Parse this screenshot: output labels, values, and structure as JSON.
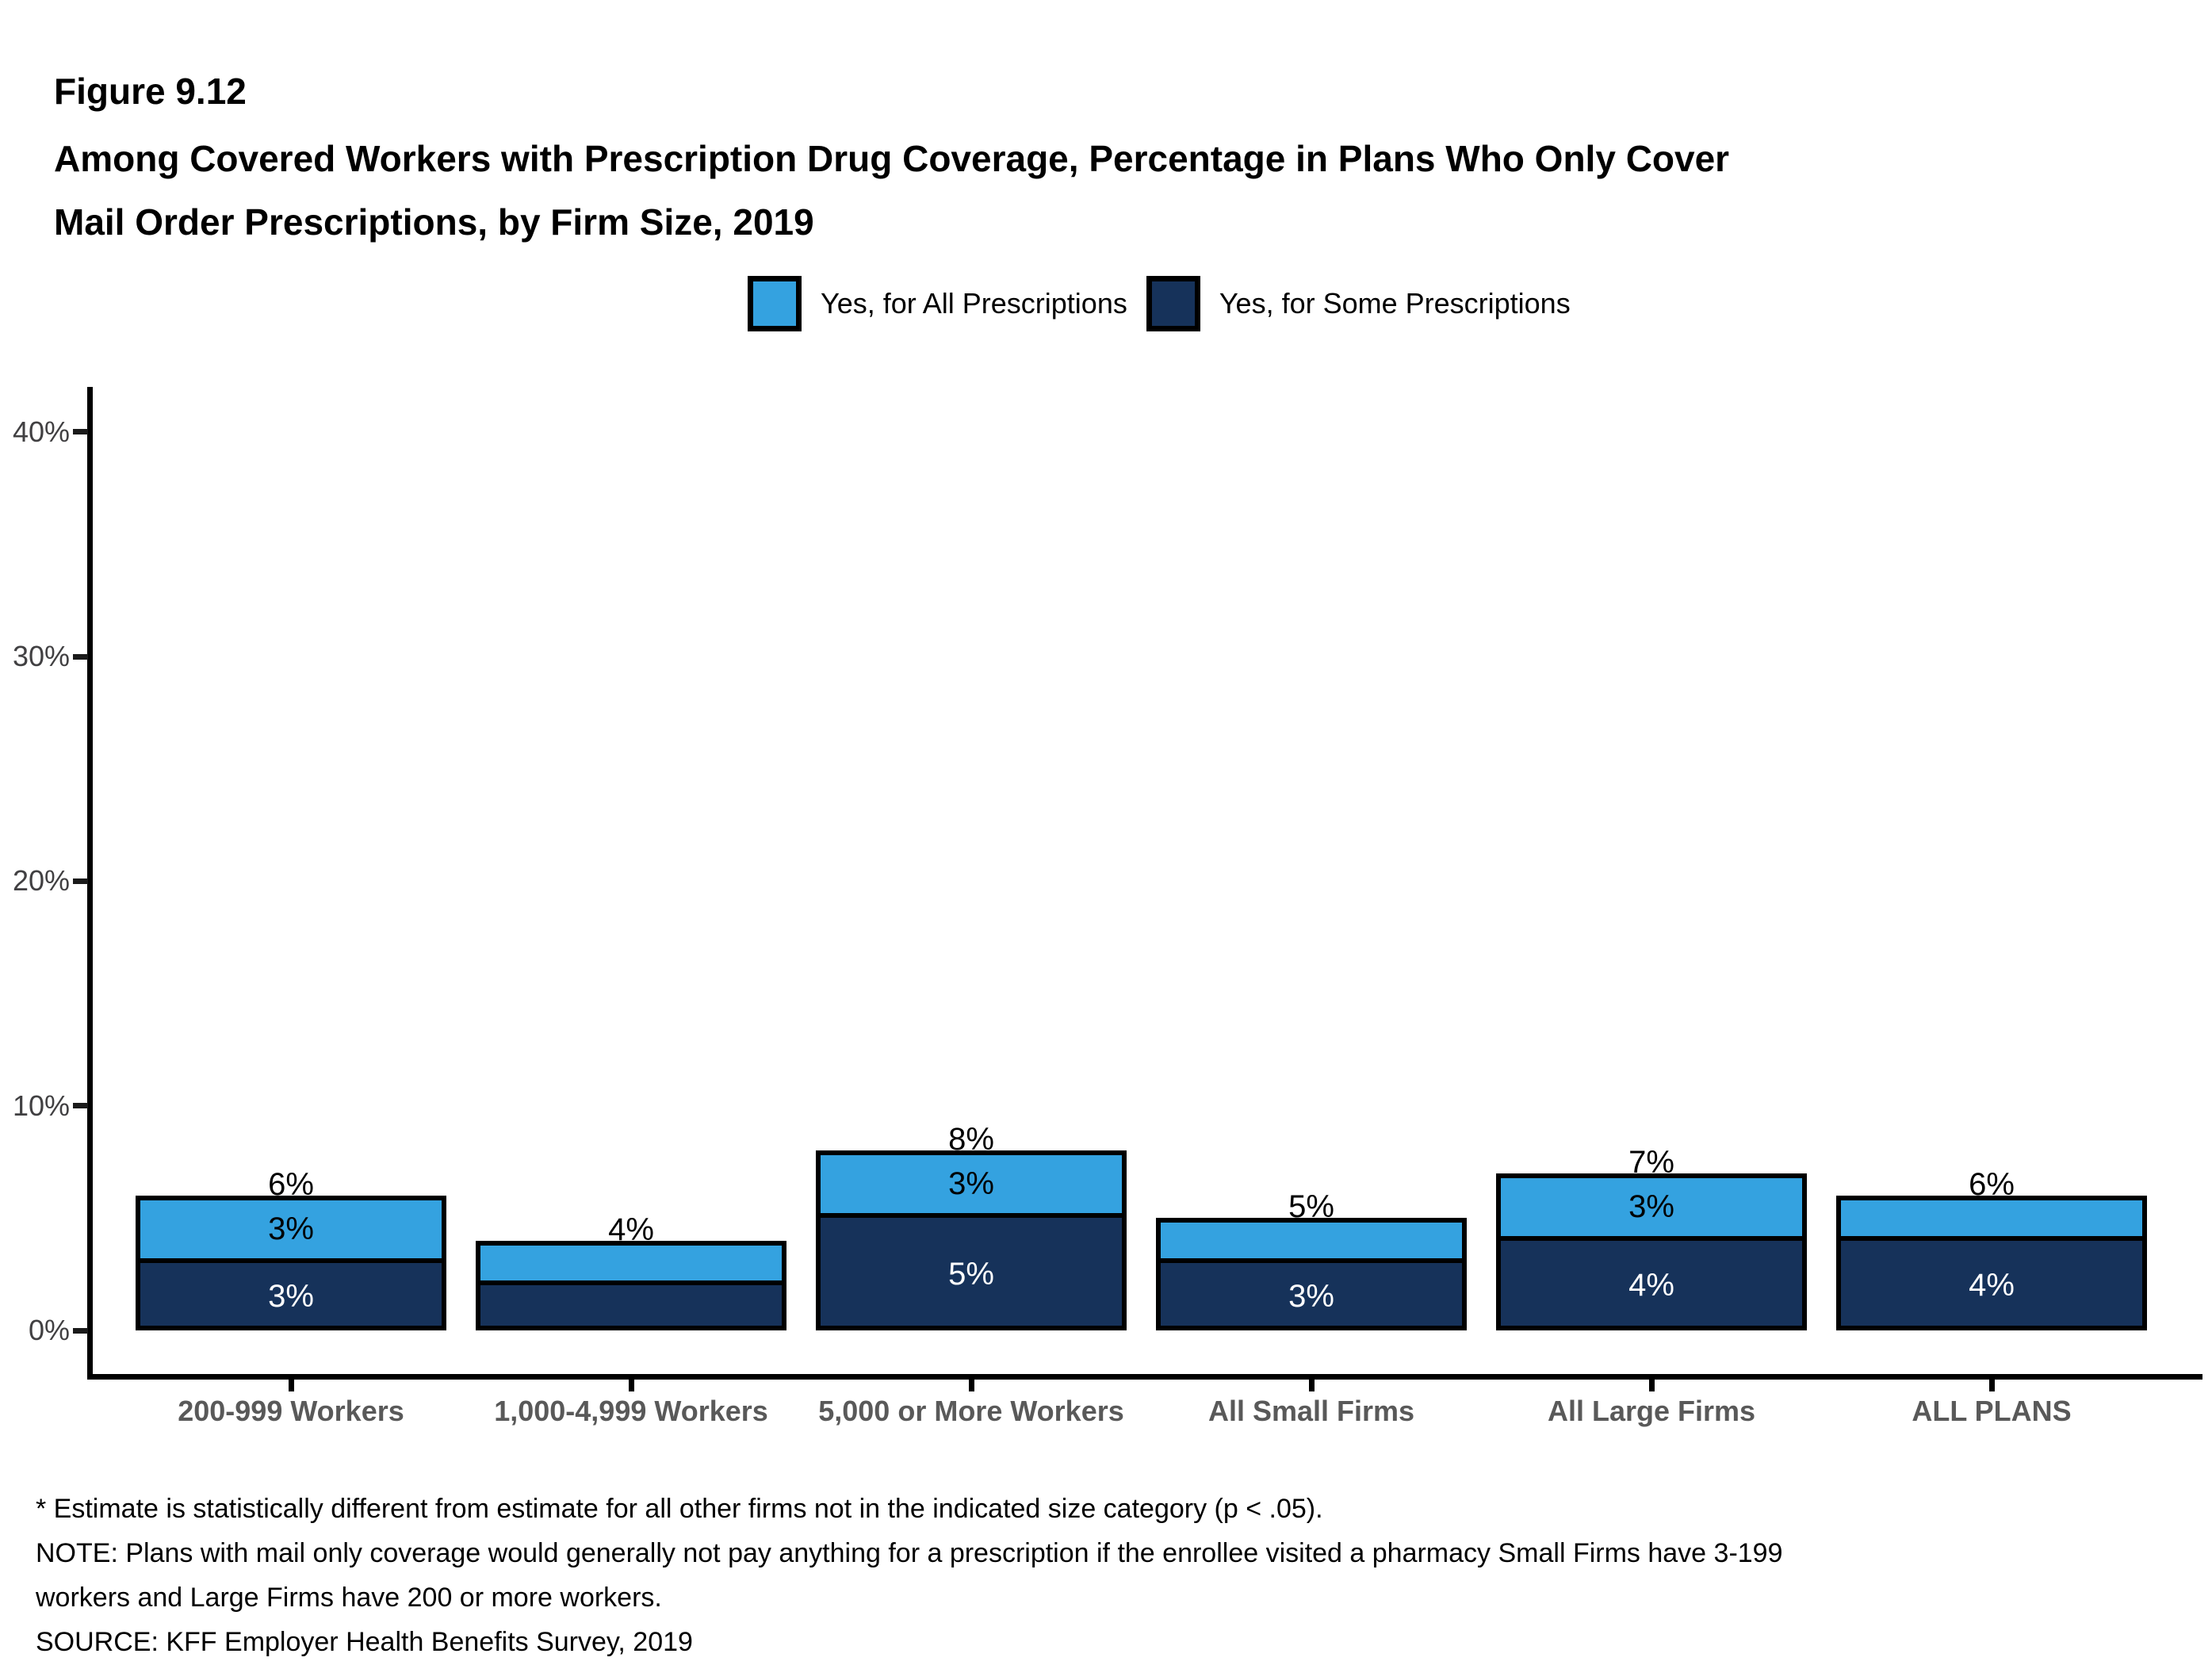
{
  "header": {
    "figure_label": "Figure 9.12",
    "title_line1": "Among Covered Workers with Prescription Drug Coverage, Percentage in Plans Who Only Cover",
    "title_line2": "Mail Order Prescriptions, by Firm Size, 2019"
  },
  "legend": [
    {
      "label": "Yes, for All Prescriptions",
      "color": "#34A2E0"
    },
    {
      "label": "Yes, for Some Prescriptions",
      "color": "#16325A"
    }
  ],
  "colors": {
    "light_blue": "#34A2E0",
    "dark_navy": "#16325A",
    "axis": "#000000",
    "y_tick_label": "#414042",
    "category_label": "#595959"
  },
  "chart_data": {
    "type": "bar",
    "stacked": true,
    "grid": false,
    "legend_position": "top-center",
    "title": "Among Covered Workers with Prescription Drug Coverage, Percentage in Plans Who Only Cover Mail Order Prescriptions, by Firm Size, 2019",
    "xlabel": "",
    "ylabel": "",
    "ylim": [
      0,
      40
    ],
    "categories": [
      "200-999 Workers",
      "1,000-4,999 Workers",
      "5,000 or More Workers",
      "All Small Firms",
      "All Large Firms",
      "ALL PLANS"
    ],
    "series": [
      {
        "name": "Yes, for Some Prescriptions",
        "color": "#16325A",
        "values": [
          3,
          2,
          5,
          3,
          4,
          4
        ],
        "value_labels": [
          "3%",
          "",
          "5%",
          "3%",
          "4%",
          "4%"
        ],
        "label_color": "#ffffff"
      },
      {
        "name": "Yes, for All Prescriptions",
        "color": "#34A2E0",
        "values": [
          3,
          2,
          3,
          2,
          3,
          2
        ],
        "value_labels": [
          "3%",
          "",
          "3%",
          "",
          "3%",
          ""
        ],
        "label_color": "#000000"
      }
    ],
    "totals": [
      6,
      4,
      8,
      5,
      7,
      6
    ],
    "total_labels": [
      "6%",
      "4%",
      "8%",
      "5%",
      "7%",
      "6%"
    ],
    "y_axis": {
      "ticks": [
        {
          "label": "0%",
          "value": 0
        },
        {
          "label": "10%",
          "value": 10
        },
        {
          "label": "20%",
          "value": 20
        },
        {
          "label": "30%",
          "value": 30
        },
        {
          "label": "40%",
          "value": 40
        }
      ]
    }
  },
  "footnotes": {
    "line1": "* Estimate is statistically different from estimate for all other firms not in the indicated size category (p < .05).",
    "line2": "NOTE: Plans with mail only coverage would generally not pay anything for a prescription if the enrollee visited a pharmacy Small Firms have 3-199",
    "line3": "workers and Large Firms have 200 or more workers.",
    "line4": "SOURCE: KFF Employer Health Benefits Survey, 2019"
  }
}
